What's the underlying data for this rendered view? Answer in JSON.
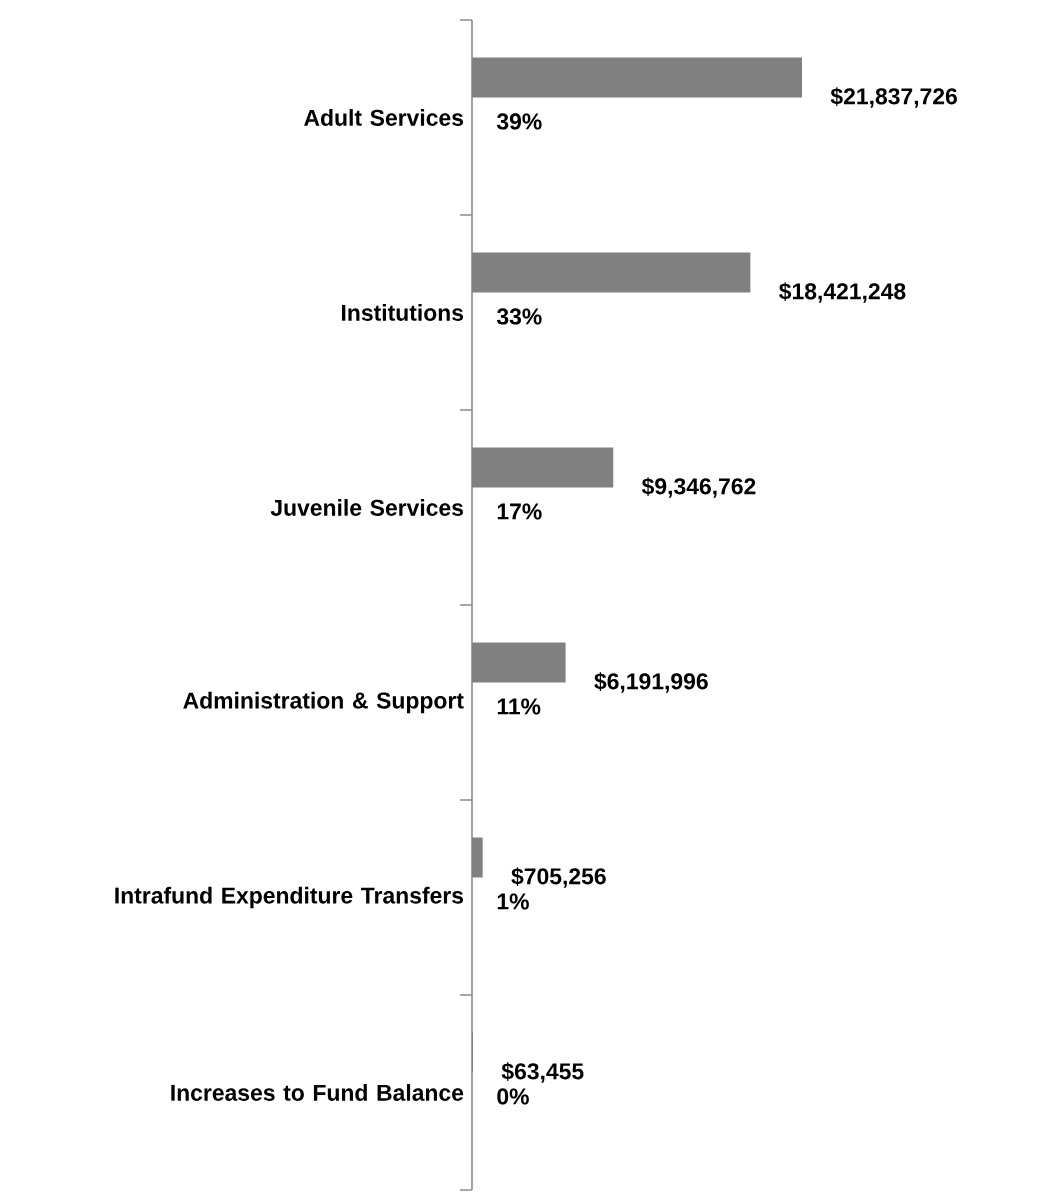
{
  "chart_data": {
    "type": "bar",
    "orientation": "horizontal",
    "categories": [
      "Adult Services",
      "Institutions",
      "Juvenile Services",
      "Administration & Support",
      "Intrafund Expenditure Transfers",
      "Increases to Fund Balance"
    ],
    "values": [
      21837726,
      18421248,
      9346762,
      6191996,
      705256,
      63455
    ],
    "value_labels": [
      "$21,837,726",
      "$18,421,248",
      "$9,346,762",
      "$6,191,996",
      "$705,256",
      "$63,455"
    ],
    "color": "#808080",
    "annotations": [
      "39%",
      "33%",
      "17%",
      "11%",
      "1%",
      "0%"
    ],
    "tick_labels": "y",
    "grid": false
  }
}
